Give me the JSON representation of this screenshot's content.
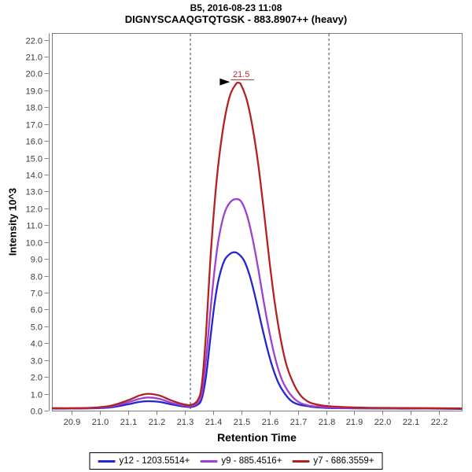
{
  "header": {
    "line1": "B5, 2016-08-23 11:08",
    "line2": "DIGNYSCAAQGTQTGSK - 883.8907++ (heavy)"
  },
  "chart_data": {
    "type": "line",
    "title": "B5, 2016-08-23 11:08",
    "subtitle": "DIGNYSCAAQGTQTGSK - 883.8907++ (heavy)",
    "xlabel": "Retention Time",
    "ylabel": "Intensity 10^3",
    "xlim": [
      20.83,
      22.28
    ],
    "ylim": [
      0,
      22.4
    ],
    "xticks": [
      20.9,
      21.0,
      21.1,
      21.2,
      21.3,
      21.4,
      21.5,
      21.6,
      21.7,
      21.8,
      21.9,
      22.0,
      22.1,
      22.2
    ],
    "yticks": [
      0.0,
      1.0,
      2.0,
      3.0,
      4.0,
      5.0,
      6.0,
      7.0,
      8.0,
      9.0,
      10.0,
      11.0,
      12.0,
      13.0,
      14.0,
      15.0,
      16.0,
      17.0,
      18.0,
      19.0,
      20.0,
      21.0,
      22.0
    ],
    "grid": false,
    "legend_position": "bottom",
    "colors": {
      "frame": "#7d7d7d",
      "tick_label": "#3a3a3a",
      "boundary": "#3f3f3f"
    },
    "boundaries": {
      "style": "dashed",
      "values": [
        21.32,
        21.81
      ]
    },
    "annotation": {
      "text": "21.5",
      "color": "#b03030",
      "text_rt": 21.5,
      "text_value": 19.78,
      "underline_rt1": 21.462,
      "underline_rt2": 21.545,
      "underline_value": 19.63,
      "arrow_tip_rt": 21.46,
      "arrow_tip_value": 19.5,
      "arrow_color": "#000000"
    },
    "series": [
      {
        "name": "y12 - 1203.5514+",
        "color": "#2424d0",
        "points": [
          [
            20.83,
            0.12
          ],
          [
            20.9,
            0.12
          ],
          [
            20.98,
            0.14
          ],
          [
            21.04,
            0.2
          ],
          [
            21.1,
            0.38
          ],
          [
            21.14,
            0.52
          ],
          [
            21.17,
            0.56
          ],
          [
            21.21,
            0.52
          ],
          [
            21.25,
            0.38
          ],
          [
            21.29,
            0.26
          ],
          [
            21.32,
            0.22
          ],
          [
            21.345,
            0.35
          ],
          [
            21.36,
            0.7
          ],
          [
            21.375,
            2.0
          ],
          [
            21.39,
            4.2
          ],
          [
            21.405,
            6.3
          ],
          [
            21.42,
            7.8
          ],
          [
            21.44,
            8.9
          ],
          [
            21.46,
            9.3
          ],
          [
            21.475,
            9.4
          ],
          [
            21.49,
            9.3
          ],
          [
            21.51,
            8.9
          ],
          [
            21.53,
            8.0
          ],
          [
            21.55,
            6.7
          ],
          [
            21.57,
            5.2
          ],
          [
            21.59,
            3.8
          ],
          [
            21.61,
            2.6
          ],
          [
            21.63,
            1.7
          ],
          [
            21.65,
            1.1
          ],
          [
            21.675,
            0.6
          ],
          [
            21.7,
            0.38
          ],
          [
            21.74,
            0.25
          ],
          [
            21.78,
            0.18
          ],
          [
            21.82,
            0.15
          ],
          [
            21.88,
            0.14
          ],
          [
            21.95,
            0.13
          ],
          [
            22.05,
            0.12
          ],
          [
            22.15,
            0.12
          ],
          [
            22.28,
            0.1
          ]
        ]
      },
      {
        "name": "y9 - 885.4516+",
        "color": "#a040d0",
        "points": [
          [
            20.83,
            0.13
          ],
          [
            20.9,
            0.13
          ],
          [
            20.98,
            0.16
          ],
          [
            21.04,
            0.25
          ],
          [
            21.1,
            0.5
          ],
          [
            21.14,
            0.7
          ],
          [
            21.17,
            0.78
          ],
          [
            21.21,
            0.7
          ],
          [
            21.25,
            0.48
          ],
          [
            21.29,
            0.32
          ],
          [
            21.32,
            0.27
          ],
          [
            21.345,
            0.45
          ],
          [
            21.36,
            1.0
          ],
          [
            21.375,
            3.0
          ],
          [
            21.39,
            5.8
          ],
          [
            21.405,
            8.3
          ],
          [
            21.42,
            10.2
          ],
          [
            21.44,
            11.7
          ],
          [
            21.46,
            12.35
          ],
          [
            21.48,
            12.55
          ],
          [
            21.5,
            12.4
          ],
          [
            21.52,
            11.6
          ],
          [
            21.54,
            10.2
          ],
          [
            21.56,
            8.4
          ],
          [
            21.58,
            6.4
          ],
          [
            21.6,
            4.6
          ],
          [
            21.62,
            3.1
          ],
          [
            21.64,
            2.0
          ],
          [
            21.66,
            1.3
          ],
          [
            21.685,
            0.75
          ],
          [
            21.71,
            0.45
          ],
          [
            21.74,
            0.3
          ],
          [
            21.78,
            0.22
          ],
          [
            21.82,
            0.18
          ],
          [
            21.88,
            0.16
          ],
          [
            21.95,
            0.15
          ],
          [
            22.05,
            0.14
          ],
          [
            22.15,
            0.13
          ],
          [
            22.28,
            0.12
          ]
        ]
      },
      {
        "name": "y7 - 686.3559+",
        "color": "#b22222",
        "points": [
          [
            20.83,
            0.15
          ],
          [
            20.9,
            0.15
          ],
          [
            20.98,
            0.18
          ],
          [
            21.04,
            0.3
          ],
          [
            21.1,
            0.62
          ],
          [
            21.14,
            0.9
          ],
          [
            21.17,
            1.0
          ],
          [
            21.21,
            0.9
          ],
          [
            21.25,
            0.62
          ],
          [
            21.29,
            0.4
          ],
          [
            21.32,
            0.33
          ],
          [
            21.345,
            0.6
          ],
          [
            21.36,
            1.5
          ],
          [
            21.375,
            4.5
          ],
          [
            21.39,
            8.8
          ],
          [
            21.405,
            12.2
          ],
          [
            21.42,
            14.8
          ],
          [
            21.44,
            17.2
          ],
          [
            21.46,
            18.7
          ],
          [
            21.48,
            19.35
          ],
          [
            21.49,
            19.45
          ],
          [
            21.5,
            19.3
          ],
          [
            21.52,
            18.4
          ],
          [
            21.54,
            16.8
          ],
          [
            21.56,
            14.6
          ],
          [
            21.58,
            11.8
          ],
          [
            21.6,
            8.8
          ],
          [
            21.62,
            6.2
          ],
          [
            21.64,
            4.2
          ],
          [
            21.66,
            2.7
          ],
          [
            21.685,
            1.6
          ],
          [
            21.71,
            0.9
          ],
          [
            21.74,
            0.5
          ],
          [
            21.78,
            0.32
          ],
          [
            21.82,
            0.25
          ],
          [
            21.88,
            0.2
          ],
          [
            21.95,
            0.17
          ],
          [
            22.05,
            0.16
          ],
          [
            22.15,
            0.15
          ],
          [
            22.28,
            0.13
          ]
        ]
      }
    ]
  }
}
